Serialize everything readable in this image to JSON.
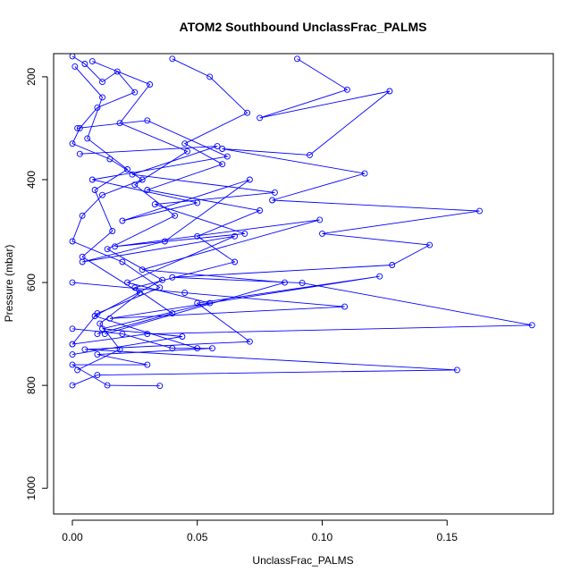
{
  "chart_data": {
    "type": "line",
    "title": "ATOM2 Southbound UnclassFrac_PALMS",
    "xlabel": "UnclassFrac_PALMS",
    "ylabel": "Pressure (mbar)",
    "xlim": [
      -0.0075,
      0.1925
    ],
    "ylim": [
      1050,
      155
    ],
    "y_reversed": true,
    "x_ticks": [
      0.0,
      0.05,
      0.1,
      0.15
    ],
    "x_tick_labels": [
      "0.00",
      "0.05",
      "0.10",
      "0.15"
    ],
    "y_ticks": [
      200,
      400,
      600,
      800,
      1000
    ],
    "y_tick_labels": [
      "200",
      "400",
      "600",
      "800",
      "1000"
    ],
    "grid": false,
    "legend": "none",
    "series_color": "#0000ff",
    "series": [
      {
        "x": [
          0.0,
          0.005,
          0.012,
          0.018,
          0.025,
          0.01,
          0.003,
          0.0,
          0.015,
          0.028,
          0.012,
          0.004,
          0.0,
          0.02,
          0.035,
          0.01,
          0.0
        ],
        "y": [
          160,
          175,
          210,
          190,
          230,
          260,
          300,
          330,
          360,
          400,
          430,
          470,
          520,
          560,
          610,
          660,
          720
        ]
      },
      {
        "x": [
          0.04,
          0.055,
          0.07,
          0.045,
          0.06,
          0.03,
          0.075,
          0.05,
          0.065,
          0.025,
          0.04,
          0.01
        ],
        "y": [
          165,
          200,
          270,
          330,
          370,
          420,
          460,
          510,
          560,
          610,
          660,
          700
        ]
      },
      {
        "x": [
          0.09,
          0.11,
          0.075,
          0.127,
          0.095,
          0.06,
          0.117,
          0.08,
          0.163,
          0.1,
          0.143,
          0.128,
          0.04,
          0.092,
          0.184,
          0.03,
          0.0
        ],
        "y": [
          165,
          225,
          280,
          228,
          352,
          340,
          388,
          440,
          461,
          505,
          527,
          566,
          590,
          601,
          683,
          700,
          720
        ]
      },
      {
        "x": [
          0.0,
          0.045,
          0.109,
          0.015,
          0.123,
          0.05,
          0.071,
          0.005,
          0.154,
          0.01,
          0.0
        ],
        "y": [
          600,
          620,
          647,
          670,
          588,
          640,
          715,
          730,
          770,
          780,
          800
        ]
      },
      {
        "x": [
          0.0,
          0.02,
          0.04,
          0.056,
          0.01,
          0.03,
          0.0,
          0.014,
          0.035
        ],
        "y": [
          690,
          700,
          728,
          728,
          740,
          760,
          760,
          800,
          801
        ]
      },
      {
        "x": [
          0.002,
          0.03,
          0.062,
          0.008,
          0.05,
          0.02,
          0.071,
          0.037,
          0.004,
          0.065,
          0.022,
          0.055,
          0.012,
          0.044,
          0.0
        ],
        "y": [
          300,
          285,
          355,
          400,
          445,
          480,
          400,
          520,
          560,
          510,
          600,
          640,
          690,
          705,
          740
        ]
      },
      {
        "x": [
          0.001,
          0.012,
          0.006,
          0.022,
          0.009,
          0.016,
          0.004,
          0.027,
          0.011,
          0.019,
          0.002
        ],
        "y": [
          180,
          240,
          320,
          380,
          420,
          500,
          550,
          620,
          680,
          730,
          770
        ]
      },
      {
        "x": [
          0.008,
          0.031,
          0.019,
          0.046,
          0.025,
          0.041,
          0.014,
          0.036,
          0.009,
          0.05
        ],
        "y": [
          170,
          215,
          290,
          345,
          410,
          470,
          535,
          595,
          665,
          728
        ]
      },
      {
        "x": [
          0.003,
          0.058,
          0.024,
          0.081,
          0.033,
          0.069,
          0.017,
          0.099,
          0.028,
          0.085,
          0.013
        ],
        "y": [
          350,
          335,
          390,
          425,
          448,
          505,
          530,
          478,
          575,
          600,
          700
        ]
      }
    ]
  }
}
